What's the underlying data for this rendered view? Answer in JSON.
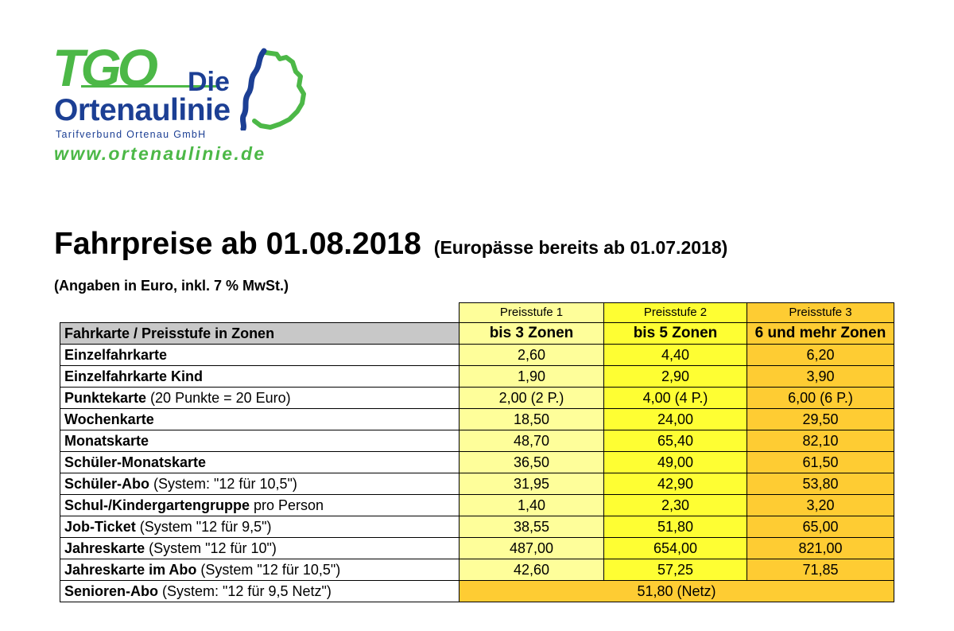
{
  "logo": {
    "tgo": "TGO",
    "die": "Die",
    "ortenaulinie": "Ortenaulinie",
    "subtitle": "Tarifverbund Ortenau GmbH",
    "url": "www.ortenaulinie.de",
    "map_icon": "baden-wuerttemberg-map-icon",
    "colors": {
      "green": "#4cb847",
      "blue": "#1c3f94"
    }
  },
  "title": "Fahrpreise ab 01.08.2018",
  "title_note": "(Europässe bereits ab 01.07.2018)",
  "subtitle": "(Angaben in Euro, inkl. 7 % MwSt.)",
  "table": {
    "levels": [
      "Preisstufe 1",
      "Preisstufe 2",
      "Preisstufe 3"
    ],
    "header": {
      "label": "Fahrkarte / Preisstufe in Zonen",
      "zones": [
        "bis 3 Zonen",
        "bis 5 Zonen",
        "6 und mehr Zonen"
      ]
    },
    "colors": {
      "level1": "#fefe9a",
      "level2": "#fefe33",
      "level3": "#fecc33",
      "header": "#c8c8c8"
    },
    "rows": [
      {
        "name": "Einzelfahrkarte",
        "note": "",
        "values": [
          "2,60",
          "4,40",
          "6,20"
        ]
      },
      {
        "name": "Einzelfahrkarte Kind",
        "note": "",
        "values": [
          "1,90",
          "2,90",
          "3,90"
        ]
      },
      {
        "name": "Punktekarte",
        "note": " (20 Punkte = 20 Euro)",
        "values": [
          "2,00 (2 P.)",
          "4,00 (4 P.)",
          "6,00 (6 P.)"
        ]
      },
      {
        "name": "Wochenkarte",
        "note": "",
        "values": [
          "18,50",
          "24,00",
          "29,50"
        ]
      },
      {
        "name": "Monatskarte",
        "note": "",
        "values": [
          "48,70",
          "65,40",
          "82,10"
        ]
      },
      {
        "name": "Schüler-Monatskarte",
        "note": "",
        "values": [
          "36,50",
          "49,00",
          "61,50"
        ]
      },
      {
        "name": "Schüler-Abo",
        "note": " (System: \"12 für 10,5\")",
        "values": [
          "31,95",
          "42,90",
          "53,80"
        ]
      },
      {
        "name": "Schul-/Kindergartengruppe",
        "note": " pro Person",
        "values": [
          "1,40",
          "2,30",
          "3,20"
        ]
      },
      {
        "name": "Job-Ticket",
        "note": " (System \"12 für 9,5\")",
        "values": [
          "38,55",
          "51,80",
          "65,00"
        ]
      },
      {
        "name": "Jahreskarte",
        "note": " (System \"12 für 10\")",
        "values": [
          "487,00",
          "654,00",
          "821,00"
        ]
      },
      {
        "name": "Jahreskarte im Abo",
        "note": " (System \"12 für 10,5\")",
        "values": [
          "42,60",
          "57,25",
          "71,85"
        ]
      }
    ],
    "senior_row": {
      "name": "Senioren-Abo",
      "note": " (System: \"12 für 9,5 Netz\")",
      "value": "51,80 (Netz)"
    }
  }
}
